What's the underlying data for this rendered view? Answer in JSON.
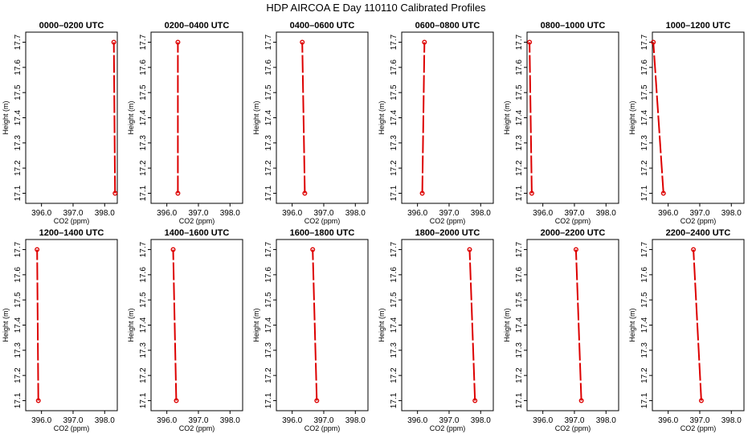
{
  "title": "HDP AIRCOA E  Day 110110  Calibrated Profiles",
  "chart_data": [
    {
      "type": "line",
      "title": "0000–0200 UTC",
      "xlabel": "CO2 (ppm)",
      "ylabel": "Height (m)",
      "xlim": [
        395.5,
        398.4
      ],
      "ylim": [
        17.06,
        17.74
      ],
      "xticks": [
        "396.0",
        "397.0",
        "398.0"
      ],
      "yticks": [
        "17.1",
        "17.2",
        "17.3",
        "17.4",
        "17.5",
        "17.6",
        "17.7"
      ],
      "series": [
        {
          "x": [
            398.33,
            398.29
          ],
          "y": [
            17.1,
            17.7
          ]
        }
      ]
    },
    {
      "type": "line",
      "title": "0200–0400 UTC",
      "xlabel": "CO2 (ppm)",
      "ylabel": "Height (m)",
      "xlim": [
        395.5,
        398.4
      ],
      "ylim": [
        17.06,
        17.74
      ],
      "xticks": [
        "396.0",
        "397.0",
        "398.0"
      ],
      "yticks": [
        "17.1",
        "17.2",
        "17.3",
        "17.4",
        "17.5",
        "17.6",
        "17.7"
      ],
      "series": [
        {
          "x": [
            396.35,
            396.35
          ],
          "y": [
            17.1,
            17.7
          ]
        }
      ]
    },
    {
      "type": "line",
      "title": "0400–0600 UTC",
      "xlabel": "CO2 (ppm)",
      "ylabel": "Height (m)",
      "xlim": [
        395.5,
        398.4
      ],
      "ylim": [
        17.06,
        17.74
      ],
      "xticks": [
        "396.0",
        "397.0",
        "398.0"
      ],
      "yticks": [
        "17.1",
        "17.2",
        "17.3",
        "17.4",
        "17.5",
        "17.6",
        "17.7"
      ],
      "series": [
        {
          "x": [
            396.4,
            396.32
          ],
          "y": [
            17.1,
            17.7
          ]
        }
      ]
    },
    {
      "type": "line",
      "title": "0600–0800 UTC",
      "xlabel": "CO2 (ppm)",
      "ylabel": "Height (m)",
      "xlim": [
        395.5,
        398.4
      ],
      "ylim": [
        17.06,
        17.74
      ],
      "xticks": [
        "396.0",
        "397.0",
        "398.0"
      ],
      "yticks": [
        "17.1",
        "17.2",
        "17.3",
        "17.4",
        "17.5",
        "17.6",
        "17.7"
      ],
      "series": [
        {
          "x": [
            396.15,
            396.22
          ],
          "y": [
            17.1,
            17.7
          ]
        }
      ]
    },
    {
      "type": "line",
      "title": "0800–1000 UTC",
      "xlabel": "CO2 (ppm)",
      "ylabel": "Height (m)",
      "xlim": [
        395.5,
        398.4
      ],
      "ylim": [
        17.06,
        17.74
      ],
      "xticks": [
        "396.0",
        "397.0",
        "398.0"
      ],
      "yticks": [
        "17.1",
        "17.2",
        "17.3",
        "17.4",
        "17.5",
        "17.6",
        "17.7"
      ],
      "series": [
        {
          "x": [
            395.65,
            395.58
          ],
          "y": [
            17.1,
            17.7
          ]
        }
      ]
    },
    {
      "type": "line",
      "title": "1000–1200 UTC",
      "xlabel": "CO2 (ppm)",
      "ylabel": "Height (m)",
      "xlim": [
        395.5,
        398.4
      ],
      "ylim": [
        17.06,
        17.74
      ],
      "xticks": [
        "396.0",
        "397.0",
        "398.0"
      ],
      "yticks": [
        "17.1",
        "17.2",
        "17.3",
        "17.4",
        "17.5",
        "17.6",
        "17.7"
      ],
      "series": [
        {
          "x": [
            395.85,
            395.53
          ],
          "y": [
            17.1,
            17.7
          ]
        }
      ]
    },
    {
      "type": "line",
      "title": "1200–1400 UTC",
      "xlabel": "CO2 (ppm)",
      "ylabel": "Height (m)",
      "xlim": [
        395.5,
        398.4
      ],
      "ylim": [
        17.06,
        17.74
      ],
      "xticks": [
        "396.0",
        "397.0",
        "398.0"
      ],
      "yticks": [
        "17.1",
        "17.2",
        "17.3",
        "17.4",
        "17.5",
        "17.6",
        "17.7"
      ],
      "series": [
        {
          "x": [
            395.9,
            395.86
          ],
          "y": [
            17.1,
            17.7
          ]
        }
      ]
    },
    {
      "type": "line",
      "title": "1400–1600 UTC",
      "xlabel": "CO2 (ppm)",
      "ylabel": "Height (m)",
      "xlim": [
        395.5,
        398.4
      ],
      "ylim": [
        17.06,
        17.74
      ],
      "xticks": [
        "396.0",
        "397.0",
        "398.0"
      ],
      "yticks": [
        "17.1",
        "17.2",
        "17.3",
        "17.4",
        "17.5",
        "17.6",
        "17.7"
      ],
      "series": [
        {
          "x": [
            396.3,
            396.2
          ],
          "y": [
            17.1,
            17.7
          ]
        }
      ]
    },
    {
      "type": "line",
      "title": "1600–1800 UTC",
      "xlabel": "CO2 (ppm)",
      "ylabel": "Height (m)",
      "xlim": [
        395.5,
        398.4
      ],
      "ylim": [
        17.06,
        17.74
      ],
      "xticks": [
        "396.0",
        "397.0",
        "398.0"
      ],
      "yticks": [
        "17.1",
        "17.2",
        "17.3",
        "17.4",
        "17.5",
        "17.6",
        "17.7"
      ],
      "series": [
        {
          "x": [
            396.78,
            396.65
          ],
          "y": [
            17.1,
            17.7
          ]
        }
      ]
    },
    {
      "type": "line",
      "title": "1800–2000 UTC",
      "xlabel": "CO2 (ppm)",
      "ylabel": "Height (m)",
      "xlim": [
        395.5,
        398.4
      ],
      "ylim": [
        17.06,
        17.74
      ],
      "xticks": [
        "396.0",
        "397.0",
        "398.0"
      ],
      "yticks": [
        "17.1",
        "17.2",
        "17.3",
        "17.4",
        "17.5",
        "17.6",
        "17.7"
      ],
      "series": [
        {
          "x": [
            397.82,
            397.65
          ],
          "y": [
            17.1,
            17.7
          ]
        }
      ]
    },
    {
      "type": "line",
      "title": "2000–2200 UTC",
      "xlabel": "CO2 (ppm)",
      "ylabel": "Height (m)",
      "xlim": [
        395.5,
        398.4
      ],
      "ylim": [
        17.06,
        17.74
      ],
      "xticks": [
        "396.0",
        "397.0",
        "398.0"
      ],
      "yticks": [
        "17.1",
        "17.2",
        "17.3",
        "17.4",
        "17.5",
        "17.6",
        "17.7"
      ],
      "series": [
        {
          "x": [
            397.22,
            397.05
          ],
          "y": [
            17.1,
            17.7
          ]
        }
      ]
    },
    {
      "type": "line",
      "title": "2200–2400 UTC",
      "xlabel": "CO2 (ppm)",
      "ylabel": "Height (m)",
      "xlim": [
        395.5,
        398.4
      ],
      "ylim": [
        17.06,
        17.74
      ],
      "xticks": [
        "396.0",
        "397.0",
        "398.0"
      ],
      "yticks": [
        "17.1",
        "17.2",
        "17.3",
        "17.4",
        "17.5",
        "17.6",
        "17.7"
      ],
      "series": [
        {
          "x": [
            397.05,
            396.8
          ],
          "y": [
            17.1,
            17.7
          ]
        }
      ]
    }
  ],
  "colors": {
    "profile_line": "#dd0000",
    "marker": "#dd0000",
    "axes": "#000000"
  }
}
